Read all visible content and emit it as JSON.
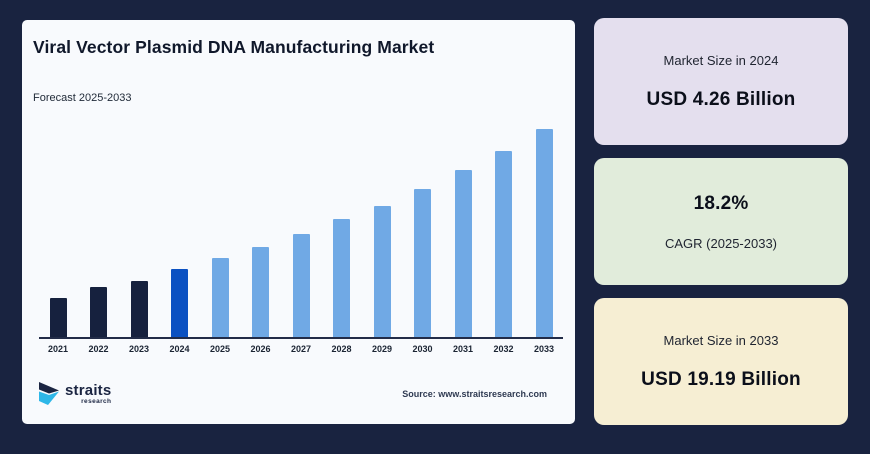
{
  "page": {
    "background": "#192340"
  },
  "panel": {
    "title": "Viral Vector Plasmid DNA Manufacturing Market",
    "subtitle": "Forecast 2025-2033",
    "source": "Source: www.straitsresearch.com",
    "background": "#f8fafd",
    "logo": {
      "name": "straits",
      "sub": "research"
    }
  },
  "chart_data": {
    "type": "bar",
    "title": "Viral Vector Plasmid DNA Manufacturing Market",
    "xlabel": "",
    "ylabel": "",
    "categories": [
      "2021",
      "2022",
      "2023",
      "2024",
      "2025",
      "2026",
      "2027",
      "2028",
      "2029",
      "2030",
      "2031",
      "2032",
      "2033"
    ],
    "values_usd_billion_est": [
      2.58,
      3.05,
      3.6,
      4.26,
      5.04,
      5.95,
      7.03,
      8.31,
      9.82,
      11.61,
      13.72,
      16.22,
      19.19
    ],
    "labeled_points": {
      "2024": "USD 4.26 Billion",
      "2033": "USD 19.19 Billion"
    },
    "cagr_pct": 18.2,
    "bar_height_pct": [
      18.7,
      23.9,
      26.8,
      32.5,
      37.8,
      43.5,
      49.3,
      56.5,
      63.2,
      71.3,
      80.4,
      89.5,
      100
    ],
    "segments": [
      "historical",
      "historical",
      "historical",
      "base",
      "forecast",
      "forecast",
      "forecast",
      "forecast",
      "forecast",
      "forecast",
      "forecast",
      "forecast",
      "forecast"
    ],
    "colors": {
      "historical": "#16213e",
      "base": "#0b51c2",
      "forecast": "#70a9e5"
    },
    "axis_color": "#222c48",
    "ylim": [
      0,
      20
    ],
    "grid": false,
    "legend": false
  },
  "cards": [
    {
      "label": "Market Size in 2024",
      "value": "USD 4.26 Billion",
      "background": "#e4dfee"
    },
    {
      "value": "18.2%",
      "label": "CAGR (2025-2033)",
      "background": "#e1ecdb"
    },
    {
      "label": "Market Size in 2033",
      "value": "USD 19.19 Billion",
      "background": "#f6eed3"
    }
  ]
}
